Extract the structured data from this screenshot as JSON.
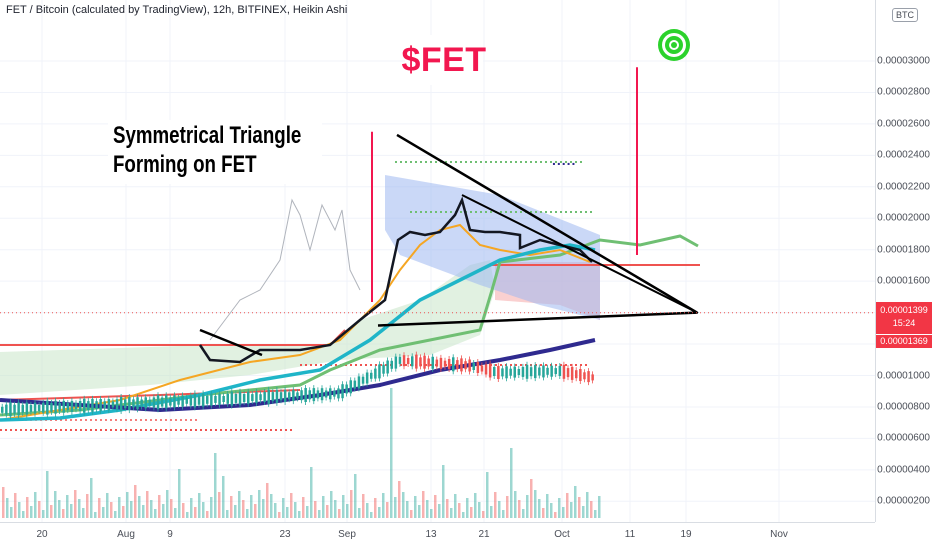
{
  "header": {
    "title": "FET / Bitcoin (calculated by TradingView), 12h, BITFINEX, Heikin Ashi",
    "currency": "BTC"
  },
  "annotations": {
    "ticker": "$FET",
    "line1": "Symmetrical Triangle",
    "line2": "Forming on FET",
    "dots": "....."
  },
  "price_tag": {
    "price": "0.00001399",
    "countdown": "15:24",
    "second_price": "0.00001369"
  },
  "colors": {
    "up": "#26a69a",
    "down": "#ef5350",
    "ticker": "#f2174f",
    "ema_cyan": "#1fb5c8",
    "ema_navy": "#2f2a8f",
    "ema_orange": "#f5a623",
    "ema_green": "#6fbf73",
    "triangle": "#000000"
  },
  "chart_data": {
    "type": "candlestick",
    "title": "FET / Bitcoin (calculated by TradingView), 12h, BITFINEX, Heikin Ashi",
    "y_axis": {
      "ticks": [
        "0.00003000",
        "0.00002800",
        "0.00002600",
        "0.00002400",
        "0.00002200",
        "0.00002000",
        "0.00001800",
        "0.00001600",
        "0.00001400",
        "0.00001200",
        "0.00001000",
        "0.00000800",
        "0.00000600",
        "0.00000400",
        "0.00000200"
      ],
      "ylim": [
        1.2e-06,
        3.18e-05
      ]
    },
    "x_axis": {
      "ticks": [
        "20",
        "Aug",
        "9",
        "23",
        "Sep",
        "13",
        "21",
        "Oct",
        "11",
        "19",
        "Nov"
      ]
    },
    "last_price": 1.399e-05,
    "triangle": {
      "upper_start": 2.53e-05,
      "upper_end": 1.4e-05,
      "lower_start": 1.318e-05,
      "lower_end": 1.4e-05
    },
    "target_price_lines": [
      2.96e-05,
      2.55e-05
    ]
  }
}
